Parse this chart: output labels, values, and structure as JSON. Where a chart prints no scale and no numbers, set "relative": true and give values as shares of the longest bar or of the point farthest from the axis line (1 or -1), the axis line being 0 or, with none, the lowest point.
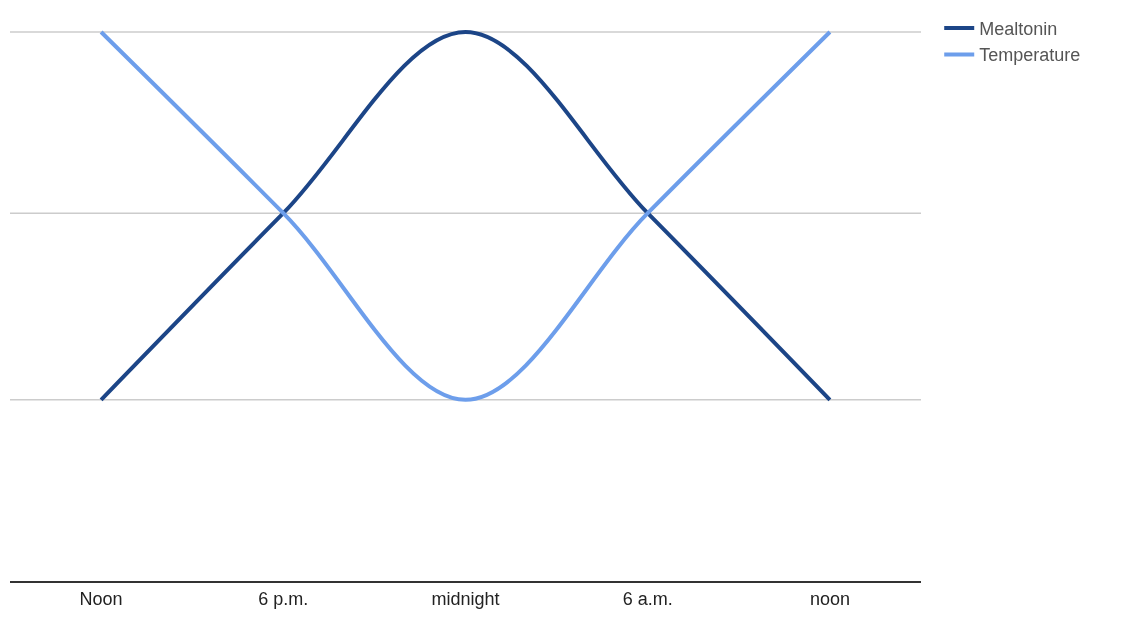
{
  "chart_data": {
    "type": "line",
    "relative": true,
    "categories": [
      "Noon",
      "6 p.m.",
      "midnight",
      "6 a.m.",
      "noon"
    ],
    "series": [
      {
        "name": "Mealtonin",
        "color": "#1c4587",
        "values": [
          0.33,
          0.67,
          1,
          0.67,
          0.33
        ]
      },
      {
        "name": "Temperature",
        "color": "#6d9eeb",
        "values": [
          1,
          0.67,
          0.33,
          0.67,
          1
        ]
      }
    ],
    "ref_lines": [
      {
        "axis": "y",
        "value": 0.33,
        "color": "#cccccc"
      },
      {
        "axis": "y",
        "value": 0.67,
        "color": "#cccccc"
      },
      {
        "axis": "y",
        "value": 1,
        "color": "#cccccc"
      }
    ],
    "legend": "top right",
    "marker": "none",
    "line_style": "solid"
  }
}
